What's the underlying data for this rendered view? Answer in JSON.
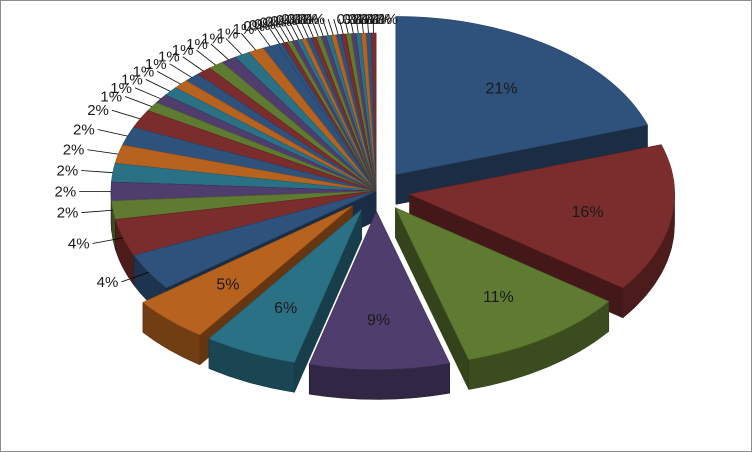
{
  "chart_data": {
    "type": "pie",
    "title": "",
    "values": [
      21,
      16,
      11,
      9,
      6,
      5,
      4,
      4,
      2,
      2,
      2,
      2,
      2,
      2,
      1,
      1,
      1,
      1,
      1,
      1,
      1,
      1,
      1,
      1,
      1,
      0,
      0,
      0,
      0,
      0,
      0,
      0,
      0,
      0,
      0,
      0,
      0,
      0,
      0,
      0,
      0,
      0,
      0,
      0,
      0
    ],
    "labels": [
      "21%",
      "16%",
      "11%",
      "9%",
      "6%",
      "5%",
      "4%",
      "4%",
      "2%",
      "2%",
      "2%",
      "2%",
      "2%",
      "2%",
      "1%",
      "1%",
      "1%",
      "1%",
      "1%",
      "1%",
      "1%",
      "1%",
      "1%",
      "1%",
      "1%",
      "0%",
      "0%",
      "0%",
      "0%",
      "0%",
      "0%",
      "0%",
      "0%",
      "0%",
      "0%",
      "0%",
      "0%",
      "0%",
      "0%",
      "0%",
      "0%",
      "0%",
      "0%",
      "0%",
      "0%"
    ],
    "colors": [
      "#2f527d",
      "#7b2c2c",
      "#5f7a31",
      "#4f3d6e",
      "#2a7186",
      "#b7621e",
      "#2f527d",
      "#7b2c2c",
      "#5f7a31",
      "#4f3d6e",
      "#2a7186",
      "#b7621e",
      "#2f527d",
      "#7b2c2c",
      "#5f7a31",
      "#4f3d6e",
      "#2a7186",
      "#b7621e",
      "#2f527d",
      "#7b2c2c",
      "#5f7a31",
      "#4f3d6e",
      "#2a7186",
      "#b7621e",
      "#2f527d"
    ],
    "three_d": true,
    "exploded": true,
    "legend": "none"
  }
}
